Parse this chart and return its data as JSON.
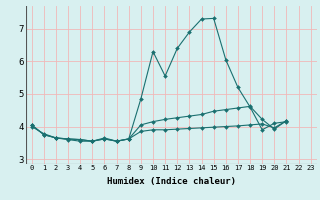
{
  "xlabel": "Humidex (Indice chaleur)",
  "xlim": [
    -0.5,
    23.5
  ],
  "ylim": [
    2.85,
    7.7
  ],
  "yticks": [
    3,
    4,
    5,
    6,
    7
  ],
  "xticks": [
    0,
    1,
    2,
    3,
    4,
    5,
    6,
    7,
    8,
    9,
    10,
    11,
    12,
    13,
    14,
    15,
    16,
    17,
    18,
    19,
    20,
    21,
    22,
    23
  ],
  "bg_color": "#d8f0f0",
  "grid_color": "#f0b8b8",
  "line_color": "#1a7070",
  "lines": [
    {
      "x": [
        0,
        1,
        2,
        3,
        4,
        5,
        6,
        7,
        8,
        9,
        10,
        11,
        12,
        13,
        14,
        15,
        16,
        17,
        18,
        19,
        20,
        21
      ],
      "y": [
        4.0,
        3.78,
        3.65,
        3.6,
        3.55,
        3.55,
        3.65,
        3.55,
        3.62,
        4.85,
        6.3,
        5.55,
        6.4,
        6.9,
        7.3,
        7.32,
        6.05,
        5.2,
        4.6,
        3.9,
        4.1,
        4.15
      ]
    },
    {
      "x": [
        0,
        1,
        2,
        3,
        4,
        5,
        6,
        7,
        8,
        9,
        10,
        11,
        12,
        13,
        14,
        15,
        16,
        17,
        18,
        19,
        20,
        21
      ],
      "y": [
        4.05,
        3.75,
        3.65,
        3.62,
        3.6,
        3.55,
        3.62,
        3.55,
        3.62,
        4.05,
        4.15,
        4.22,
        4.27,
        4.32,
        4.37,
        4.47,
        4.52,
        4.57,
        4.62,
        4.22,
        3.92,
        4.18
      ]
    },
    {
      "x": [
        0,
        1,
        2,
        3,
        4,
        5,
        6,
        7,
        8,
        9,
        10,
        11,
        12,
        13,
        14,
        15,
        16,
        17,
        18,
        19,
        20,
        21
      ],
      "y": [
        4.05,
        3.75,
        3.65,
        3.62,
        3.6,
        3.55,
        3.62,
        3.55,
        3.62,
        3.85,
        3.9,
        3.9,
        3.92,
        3.94,
        3.96,
        3.98,
        4.0,
        4.02,
        4.05,
        4.08,
        3.96,
        4.18
      ]
    }
  ]
}
